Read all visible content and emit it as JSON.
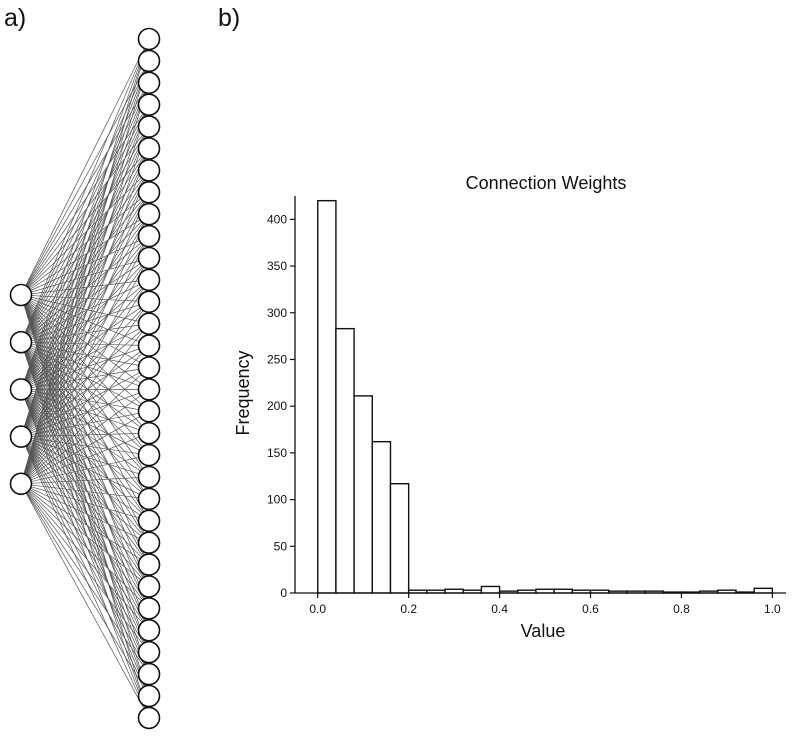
{
  "panels": {
    "a_label": "a)",
    "b_label": "b)"
  },
  "network": {
    "input_nodes": 5,
    "output_nodes": 32
  },
  "chart_data": {
    "type": "bar",
    "title": "Connection Weights",
    "xlabel": "Value",
    "ylabel": "Frequency",
    "xlim": [
      -0.05,
      1.03
    ],
    "ylim": [
      0,
      425
    ],
    "xticks": [
      0.0,
      0.2,
      0.4,
      0.6,
      0.8,
      1.0
    ],
    "xtick_labels": [
      "0.0",
      "0.2",
      "0.4",
      "0.6",
      "0.8",
      "1.0"
    ],
    "yticks": [
      0,
      50,
      100,
      150,
      200,
      250,
      300,
      350,
      400
    ],
    "ytick_labels": [
      "0",
      "50",
      "100",
      "150",
      "200",
      "250",
      "300",
      "350",
      "400"
    ],
    "bin_width": 0.04,
    "bins": [
      {
        "start": 0.0,
        "value": 420
      },
      {
        "start": 0.04,
        "value": 283
      },
      {
        "start": 0.08,
        "value": 211
      },
      {
        "start": 0.12,
        "value": 162
      },
      {
        "start": 0.16,
        "value": 117
      },
      {
        "start": 0.2,
        "value": 3
      },
      {
        "start": 0.24,
        "value": 3
      },
      {
        "start": 0.28,
        "value": 4
      },
      {
        "start": 0.32,
        "value": 3
      },
      {
        "start": 0.36,
        "value": 7
      },
      {
        "start": 0.4,
        "value": 2
      },
      {
        "start": 0.44,
        "value": 3
      },
      {
        "start": 0.48,
        "value": 4
      },
      {
        "start": 0.52,
        "value": 4
      },
      {
        "start": 0.56,
        "value": 3
      },
      {
        "start": 0.6,
        "value": 3
      },
      {
        "start": 0.64,
        "value": 2
      },
      {
        "start": 0.68,
        "value": 2
      },
      {
        "start": 0.72,
        "value": 2
      },
      {
        "start": 0.76,
        "value": 1
      },
      {
        "start": 0.8,
        "value": 1
      },
      {
        "start": 0.84,
        "value": 2
      },
      {
        "start": 0.88,
        "value": 3
      },
      {
        "start": 0.92,
        "value": 1
      },
      {
        "start": 0.96,
        "value": 5
      }
    ]
  }
}
